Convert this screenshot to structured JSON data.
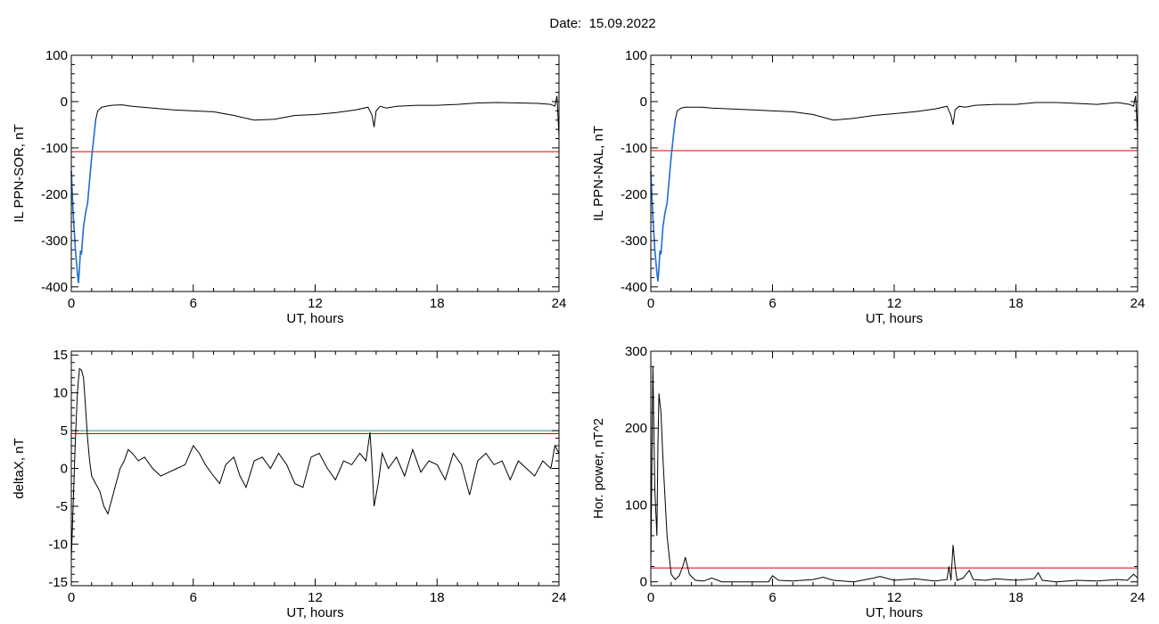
{
  "header": {
    "date_label": "Date:",
    "date_value": "15.09.2022"
  },
  "colors": {
    "data": "#000000",
    "threshold": "#dd0000",
    "highlight": "#1f6fd6",
    "secondary_threshold": "#2e8b8b",
    "green": "#2aa02a"
  },
  "chart_data": [
    {
      "type": "line",
      "ylabel": "IL PPN-SOR, nT",
      "xlabel": "UT, hours",
      "xlim": [
        0,
        24
      ],
      "ylim": [
        -410,
        100
      ],
      "xticks": [
        0,
        6,
        12,
        18,
        24
      ],
      "yticks": [
        100,
        0,
        -100,
        -200,
        -300,
        -400
      ],
      "grid": false,
      "thresholds": [
        -108
      ],
      "highlight_range": [
        0,
        1.2
      ],
      "x": [
        0,
        0.1,
        0.2,
        0.3,
        0.35,
        0.4,
        0.45,
        0.5,
        0.55,
        0.6,
        0.7,
        0.8,
        0.9,
        1.0,
        1.1,
        1.2,
        1.3,
        1.5,
        1.7,
        2,
        2.5,
        3,
        4,
        5,
        6,
        7,
        8,
        9,
        10,
        11,
        12,
        13,
        14,
        14.6,
        14.8,
        14.9,
        15.0,
        15.2,
        15.5,
        16,
        17,
        18,
        19,
        20,
        21,
        22,
        23,
        23.6,
        23.8,
        23.9,
        24
      ],
      "y": [
        -150,
        -250,
        -320,
        -370,
        -392,
        -360,
        -322,
        -330,
        -300,
        -270,
        -240,
        -220,
        -170,
        -120,
        -80,
        -40,
        -20,
        -12,
        -10,
        -8,
        -7,
        -10,
        -14,
        -18,
        -20,
        -22,
        -30,
        -40,
        -38,
        -30,
        -28,
        -24,
        -18,
        -12,
        -30,
        -55,
        -20,
        -10,
        -14,
        -10,
        -8,
        -8,
        -6,
        -3,
        -2,
        -3,
        -4,
        -6,
        -10,
        12,
        -75
      ]
    },
    {
      "type": "line",
      "ylabel": "IL PPN-NAL, nT",
      "xlabel": "UT, hours",
      "xlim": [
        0,
        24
      ],
      "ylim": [
        -410,
        100
      ],
      "xticks": [
        0,
        6,
        12,
        18,
        24
      ],
      "yticks": [
        100,
        0,
        -100,
        -200,
        -300,
        -400
      ],
      "grid": false,
      "thresholds": [
        -106
      ],
      "highlight_range": [
        0,
        1.2
      ],
      "x": [
        0,
        0.1,
        0.2,
        0.3,
        0.35,
        0.4,
        0.45,
        0.5,
        0.55,
        0.6,
        0.7,
        0.8,
        0.9,
        1.0,
        1.1,
        1.2,
        1.3,
        1.5,
        1.7,
        2,
        2.5,
        3,
        4,
        5,
        6,
        7,
        8,
        9,
        10,
        11,
        12,
        13,
        14,
        14.6,
        14.8,
        14.9,
        15.0,
        15.2,
        15.5,
        16,
        17,
        18,
        19,
        20,
        21,
        22,
        23,
        23.6,
        23.8,
        23.9,
        24
      ],
      "y": [
        -150,
        -250,
        -320,
        -370,
        -388,
        -360,
        -322,
        -330,
        -300,
        -270,
        -240,
        -220,
        -170,
        -120,
        -80,
        -40,
        -20,
        -14,
        -12,
        -12,
        -12,
        -14,
        -16,
        -18,
        -20,
        -22,
        -28,
        -40,
        -36,
        -30,
        -26,
        -22,
        -16,
        -10,
        -30,
        -50,
        -18,
        -10,
        -12,
        -8,
        -6,
        -6,
        -2,
        -2,
        -4,
        -6,
        -2,
        -6,
        -10,
        12,
        -70
      ]
    },
    {
      "type": "line",
      "ylabel": "deltaX, nT",
      "xlabel": "UT, hours",
      "xlim": [
        0,
        24
      ],
      "ylim": [
        -15.5,
        15.5
      ],
      "xticks": [
        0,
        6,
        12,
        18,
        24
      ],
      "yticks": [
        15,
        10,
        5,
        0,
        -5,
        -10,
        -15
      ],
      "grid": false,
      "thresholds": [
        4.6,
        5.0
      ],
      "x": [
        0,
        0.1,
        0.2,
        0.3,
        0.4,
        0.5,
        0.6,
        0.7,
        0.8,
        0.9,
        1.0,
        1.2,
        1.4,
        1.6,
        1.8,
        2.0,
        2.2,
        2.4,
        2.6,
        2.8,
        3.0,
        3.3,
        3.6,
        4.0,
        4.4,
        4.8,
        5.2,
        5.6,
        6.0,
        6.3,
        6.6,
        7.0,
        7.3,
        7.6,
        8.0,
        8.3,
        8.6,
        9.0,
        9.4,
        9.8,
        10.2,
        10.6,
        11.0,
        11.4,
        11.8,
        12.2,
        12.6,
        13.0,
        13.4,
        13.8,
        14.2,
        14.5,
        14.7,
        14.8,
        14.9,
        15.1,
        15.3,
        15.6,
        16.0,
        16.4,
        16.8,
        17.2,
        17.6,
        18.0,
        18.4,
        18.8,
        19.2,
        19.6,
        20.0,
        20.4,
        20.8,
        21.2,
        21.6,
        22.0,
        22.4,
        22.8,
        23.2,
        23.6,
        23.8,
        24
      ],
      "y": [
        -12,
        -4,
        4,
        10,
        13.2,
        13,
        12,
        8,
        4,
        1,
        -1,
        -2,
        -3,
        -5,
        -6,
        -4,
        -2,
        0,
        1,
        2.5,
        2,
        1,
        1.5,
        0,
        -1,
        -0.5,
        0,
        0.5,
        3,
        2,
        0.5,
        -1,
        -2,
        0.5,
        1.5,
        -1,
        -2.5,
        1,
        1.5,
        0,
        2,
        0.5,
        -2,
        -2.5,
        1.5,
        2,
        0,
        -1.5,
        1,
        0.5,
        2,
        1,
        4.8,
        0.5,
        -5,
        -2,
        2,
        0,
        1.5,
        -1,
        2.5,
        -0.5,
        1,
        0.5,
        -1.5,
        2,
        0.5,
        -3.5,
        1,
        2,
        0.5,
        1,
        -1.5,
        1,
        0,
        -1,
        1,
        0,
        3,
        2
      ]
    },
    {
      "type": "line",
      "ylabel": "Hor. power, nT^2",
      "xlabel": "UT, hours",
      "xlim": [
        0,
        24
      ],
      "ylim": [
        -5,
        300
      ],
      "xticks": [
        0,
        6,
        12,
        18,
        24
      ],
      "yticks": [
        300,
        200,
        100,
        0
      ],
      "grid": false,
      "thresholds": [
        18
      ],
      "x": [
        0,
        0.1,
        0.2,
        0.3,
        0.35,
        0.4,
        0.5,
        0.6,
        0.8,
        1.0,
        1.2,
        1.4,
        1.6,
        1.7,
        1.9,
        2.2,
        2.6,
        3.0,
        3.5,
        4.0,
        5.0,
        5.8,
        6.0,
        6.3,
        7.0,
        8.0,
        8.5,
        9.0,
        10.0,
        11.0,
        11.3,
        12.0,
        13.0,
        14.0,
        14.6,
        14.7,
        14.8,
        14.9,
        15.0,
        15.1,
        15.4,
        15.7,
        15.9,
        16.5,
        17.0,
        18.0,
        18.9,
        19.1,
        19.3,
        20.0,
        21.0,
        22.0,
        23.0,
        23.5,
        23.8,
        24
      ],
      "y": [
        20,
        280,
        120,
        60,
        180,
        245,
        220,
        160,
        60,
        10,
        3,
        8,
        22,
        32,
        10,
        2,
        1,
        5,
        0,
        0,
        0,
        0,
        8,
        2,
        1,
        3,
        6,
        2,
        0,
        5,
        7,
        2,
        4,
        1,
        3,
        20,
        2,
        48,
        20,
        2,
        5,
        15,
        3,
        2,
        4,
        2,
        4,
        12,
        2,
        0,
        2,
        1,
        3,
        2,
        10,
        5
      ]
    }
  ]
}
